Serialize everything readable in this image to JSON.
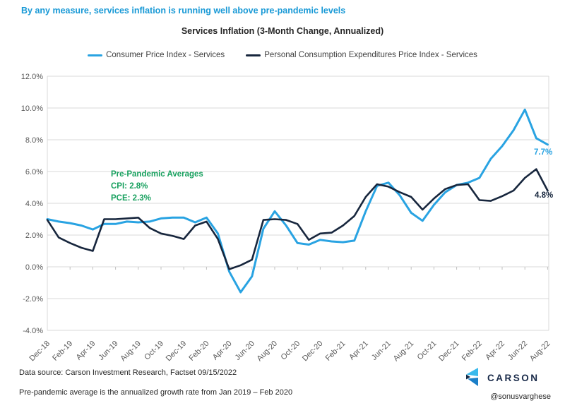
{
  "headline": "By any measure, services inflation is running well above pre-pandemic levels",
  "colors": {
    "headline": "#1899D6",
    "grid": "#D9D9D9",
    "tick": "#BFBFBF",
    "axis_text": "#595959"
  },
  "chart_data": {
    "type": "line",
    "title": "Services Inflation (3-Month Change, Annualized)",
    "xlabel": "",
    "ylabel": "",
    "ylim": [
      -4,
      12
    ],
    "ytick_step": 2,
    "ytick_format": "percent_one_decimal",
    "x_tick_step": 2,
    "grid": true,
    "legend_position": "top",
    "categories": [
      "Dec-18",
      "Jan-19",
      "Feb-19",
      "Mar-19",
      "Apr-19",
      "May-19",
      "Jun-19",
      "Jul-19",
      "Aug-19",
      "Sep-19",
      "Oct-19",
      "Nov-19",
      "Dec-19",
      "Jan-20",
      "Feb-20",
      "Mar-20",
      "Apr-20",
      "May-20",
      "Jun-20",
      "Jul-20",
      "Aug-20",
      "Sep-20",
      "Oct-20",
      "Nov-20",
      "Dec-20",
      "Jan-21",
      "Feb-21",
      "Mar-21",
      "Apr-21",
      "May-21",
      "Jun-21",
      "Jul-21",
      "Aug-21",
      "Sep-21",
      "Oct-21",
      "Nov-21",
      "Dec-21",
      "Jan-22",
      "Feb-22",
      "Mar-22",
      "Apr-22",
      "May-22",
      "Jun-22",
      "Jul-22",
      "Aug-22"
    ],
    "series": [
      {
        "name": "Consumer Price Index - Services",
        "color": "#29A3E2",
        "width": 3,
        "values": [
          3.0,
          2.85,
          2.75,
          2.6,
          2.35,
          2.7,
          2.7,
          2.85,
          2.8,
          2.85,
          3.05,
          3.1,
          3.1,
          2.8,
          3.1,
          2.1,
          -0.3,
          -1.6,
          -0.6,
          2.4,
          3.5,
          2.6,
          1.5,
          1.4,
          1.7,
          1.6,
          1.55,
          1.65,
          3.5,
          5.1,
          5.3,
          4.5,
          3.4,
          2.9,
          3.9,
          4.7,
          5.15,
          5.3,
          5.6,
          6.8,
          7.6,
          8.6,
          9.9,
          8.1,
          7.7
        ]
      },
      {
        "name": "Personal Consumption Expenditures Price Index - Services",
        "color": "#17263D",
        "width": 2.6,
        "values": [
          2.95,
          1.85,
          1.5,
          1.2,
          1.0,
          3.0,
          3.0,
          3.05,
          3.1,
          2.45,
          2.1,
          1.95,
          1.75,
          2.6,
          2.85,
          1.75,
          -0.15,
          0.1,
          0.45,
          2.95,
          3.0,
          2.95,
          2.7,
          1.7,
          2.1,
          2.15,
          2.6,
          3.2,
          4.4,
          5.2,
          5.05,
          4.7,
          4.4,
          3.6,
          4.3,
          4.9,
          5.15,
          5.2,
          4.2,
          4.15,
          4.45,
          4.8,
          5.6,
          6.15,
          4.8
        ]
      }
    ],
    "end_labels": [
      {
        "text": "7.7%"
      },
      {
        "text": "4.8%"
      }
    ]
  },
  "annotation": {
    "color": "#17A05E",
    "title": "Pre-Pandemic Averages",
    "cpi": "CPI: 2.8%",
    "pce": "PCE: 2.3%"
  },
  "footer": {
    "source": "Data source: Carson Investment Research, Factset   09/15/2022",
    "note": "Pre-pandemic average is the annualized growth rate from Jan 2019 – Feb 2020"
  },
  "branding": {
    "name": "CARSON",
    "handle": "@sonusvarghese"
  }
}
